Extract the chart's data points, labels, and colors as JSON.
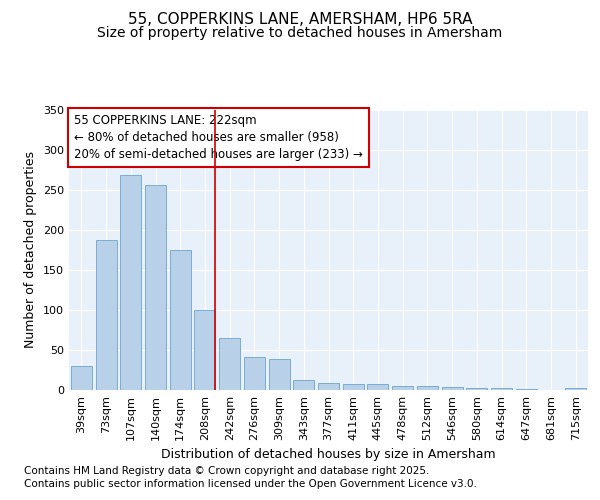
{
  "title_line1": "55, COPPERKINS LANE, AMERSHAM, HP6 5RA",
  "title_line2": "Size of property relative to detached houses in Amersham",
  "xlabel": "Distribution of detached houses by size in Amersham",
  "ylabel": "Number of detached properties",
  "categories": [
    "39sqm",
    "73sqm",
    "107sqm",
    "140sqm",
    "174sqm",
    "208sqm",
    "242sqm",
    "276sqm",
    "309sqm",
    "343sqm",
    "377sqm",
    "411sqm",
    "445sqm",
    "478sqm",
    "512sqm",
    "546sqm",
    "580sqm",
    "614sqm",
    "647sqm",
    "681sqm",
    "715sqm"
  ],
  "values": [
    30,
    188,
    269,
    256,
    175,
    100,
    65,
    41,
    39,
    12,
    9,
    8,
    7,
    5,
    5,
    4,
    2,
    2,
    1,
    0,
    2
  ],
  "bar_color": "#b8d0e8",
  "bar_edge_color": "#7aadd4",
  "fig_bg_color": "#ffffff",
  "plot_bg_color": "#e8f0fa",
  "grid_color": "#ffffff",
  "annotation_text_line1": "55 COPPERKINS LANE: 222sqm",
  "annotation_text_line2": "← 80% of detached houses are smaller (958)",
  "annotation_text_line3": "20% of semi-detached houses are larger (233) →",
  "annotation_box_edge_color": "#cc0000",
  "annotation_box_face_color": "#ffffff",
  "vline_color": "#cc0000",
  "vline_x": 5.5,
  "ylim": [
    0,
    350
  ],
  "yticks": [
    0,
    50,
    100,
    150,
    200,
    250,
    300,
    350
  ],
  "footnote_line1": "Contains HM Land Registry data © Crown copyright and database right 2025.",
  "footnote_line2": "Contains public sector information licensed under the Open Government Licence v3.0.",
  "title_fontsize": 11,
  "subtitle_fontsize": 10,
  "axis_label_fontsize": 9,
  "tick_fontsize": 8,
  "annotation_fontsize": 8.5,
  "footnote_fontsize": 7.5
}
